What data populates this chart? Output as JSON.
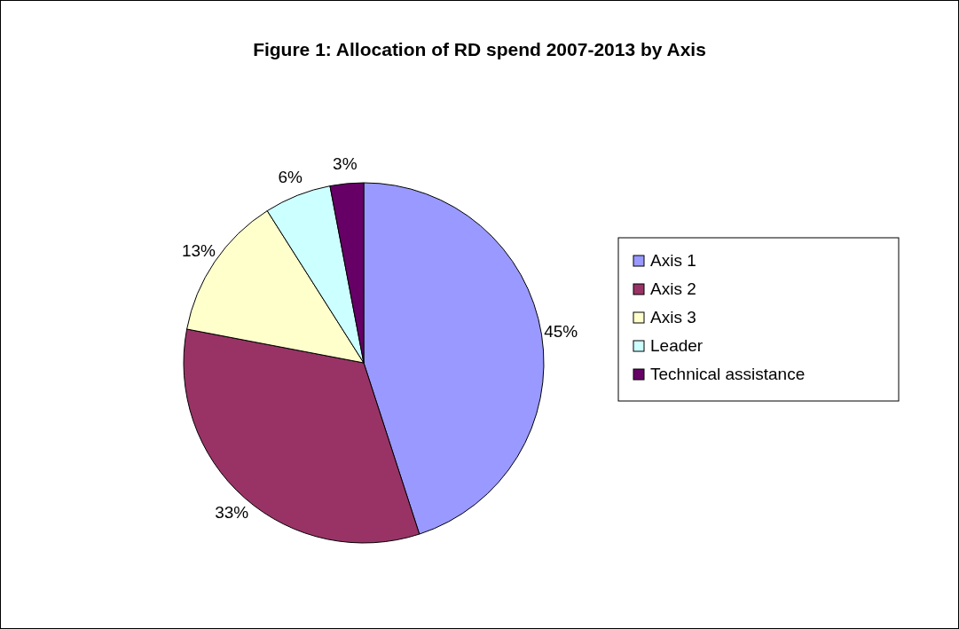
{
  "chart_data": {
    "type": "pie",
    "title": "Figure 1: Allocation of RD spend 2007-2013 by Axis",
    "categories": [
      "Axis 1",
      "Axis 2",
      "Axis 3",
      "Leader",
      "Technical assistance"
    ],
    "values": [
      45,
      33,
      13,
      6,
      3
    ],
    "value_labels": [
      "45%",
      "33%",
      "13%",
      "6%",
      "3%"
    ],
    "colors": [
      "#9999ff",
      "#993366",
      "#ffffcc",
      "#ccffff",
      "#660066"
    ],
    "legend": "right"
  }
}
